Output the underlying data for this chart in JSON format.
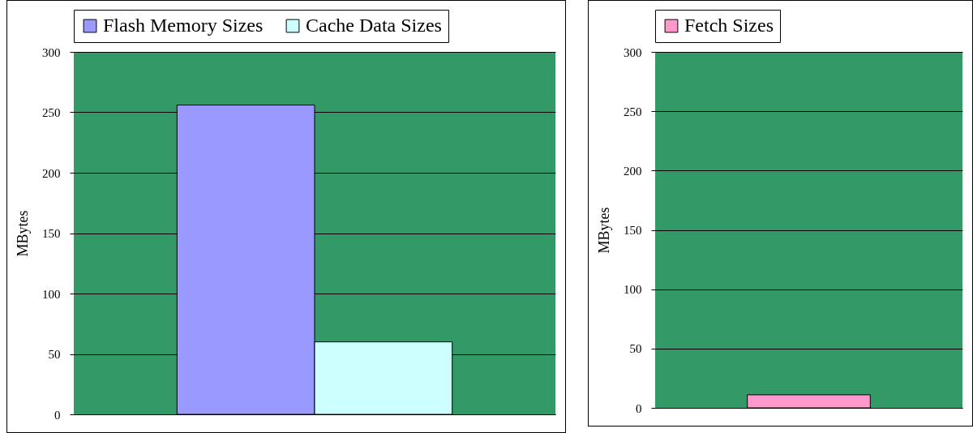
{
  "chart_data": [
    {
      "type": "bar",
      "categories": [
        null
      ],
      "ylabel": "MBytes",
      "ylim": [
        0,
        300
      ],
      "yticks": [
        0,
        50,
        100,
        150,
        200,
        250,
        300
      ],
      "grid": "y",
      "legend": "top",
      "series": [
        {
          "name": "Flash Memory Sizes",
          "color": "#9999ff",
          "values": [
            256
          ]
        },
        {
          "name": "Cache Data Sizes",
          "color": "#ccffff",
          "values": [
            60
          ]
        }
      ]
    },
    {
      "type": "bar",
      "categories": [
        null
      ],
      "ylabel": "MBytes",
      "ylim": [
        0,
        300
      ],
      "yticks": [
        0,
        50,
        100,
        150,
        200,
        250,
        300
      ],
      "grid": "y",
      "legend": "top",
      "series": [
        {
          "name": "Fetch Sizes",
          "color": "#ff99cc",
          "values": [
            11
          ]
        }
      ]
    }
  ]
}
